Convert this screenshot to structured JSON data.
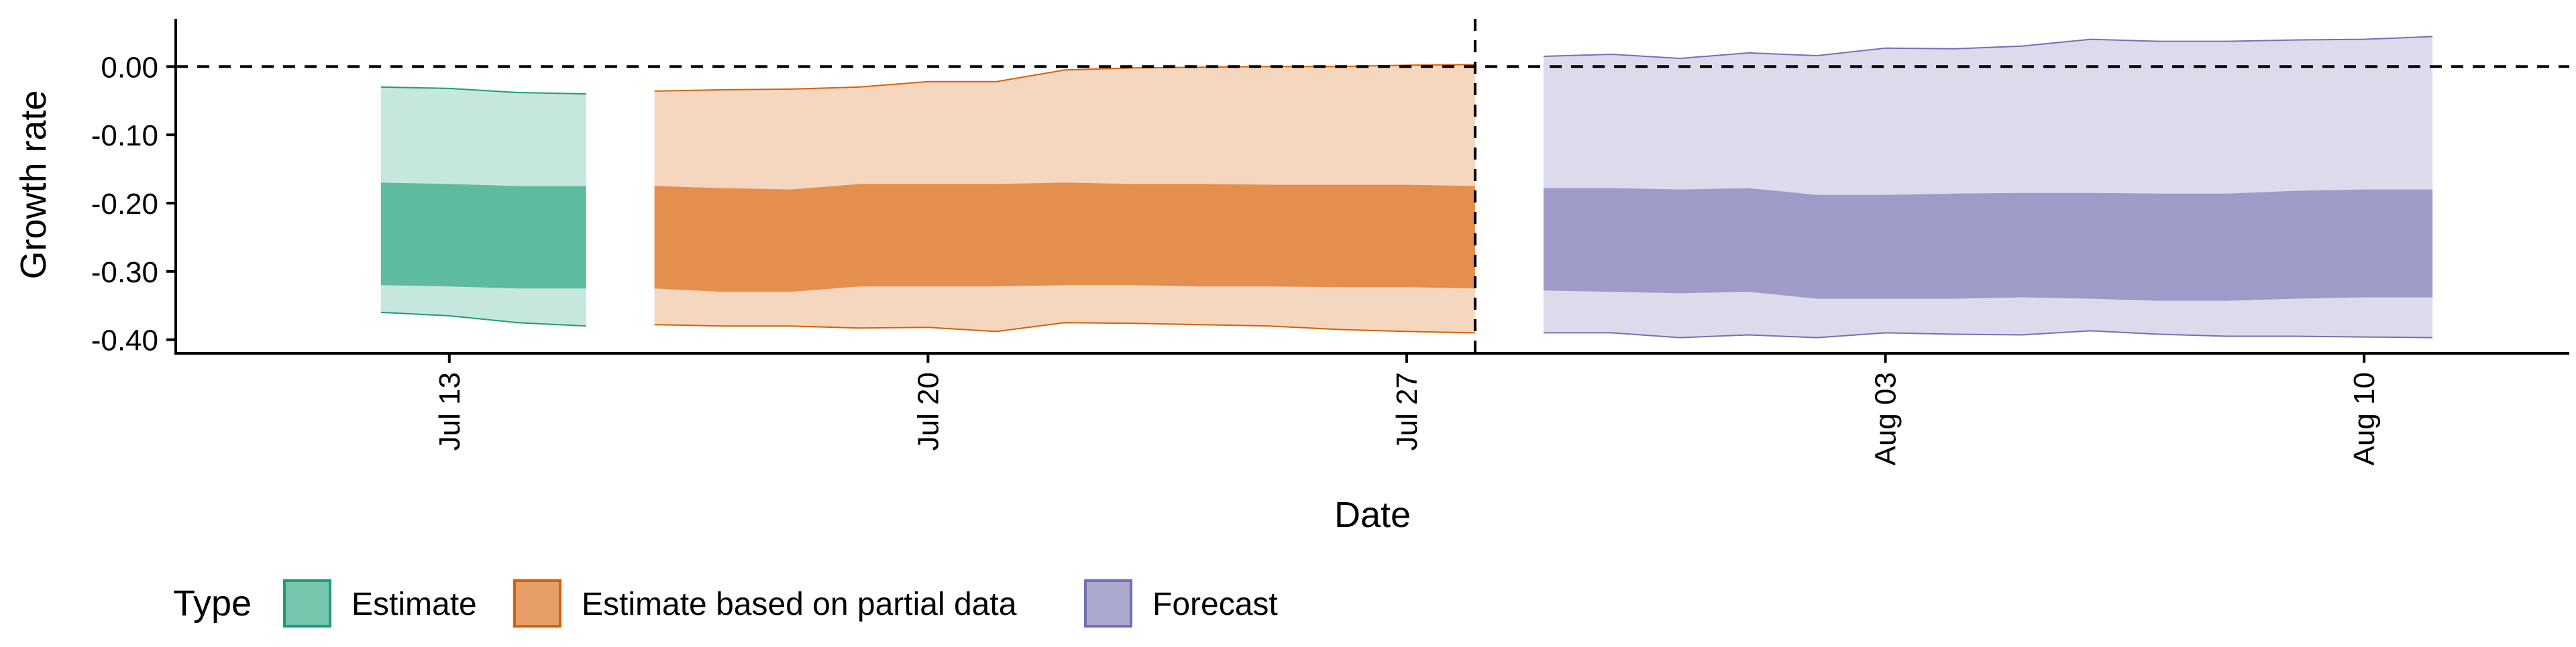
{
  "chart_data": {
    "type": "area",
    "xlabel": "Date",
    "ylabel": "Growth rate",
    "x_axis": {
      "type": "date",
      "range": [
        "2020-07-09",
        "2020-08-13"
      ],
      "ticks": [
        {
          "date": "2020-07-13",
          "label": "Jul 13"
        },
        {
          "date": "2020-07-20",
          "label": "Jul 20"
        },
        {
          "date": "2020-07-27",
          "label": "Jul 27"
        },
        {
          "date": "2020-08-03",
          "label": "Aug 03"
        },
        {
          "date": "2020-08-10",
          "label": "Aug 10"
        }
      ]
    },
    "y_axis": {
      "range": [
        -0.42,
        0.07
      ],
      "ticks": [
        {
          "value": 0.0,
          "label": "0.00"
        },
        {
          "value": -0.1,
          "label": "-0.10"
        },
        {
          "value": -0.2,
          "label": "-0.20"
        },
        {
          "value": -0.3,
          "label": "-0.30"
        },
        {
          "value": -0.4,
          "label": "-0.40"
        }
      ]
    },
    "reference_lines": {
      "horizontal_y": 0.0,
      "vertical_date": "2020-07-28"
    },
    "grid": false,
    "legend": {
      "title": "Type",
      "position": "bottom-left",
      "entries": [
        "Estimate",
        "Estimate based on partial data",
        "Forecast"
      ]
    },
    "series": [
      {
        "name": "Estimate",
        "color_fill": "#1b9e77",
        "color_line": "#1b9e77",
        "points": [
          {
            "date": "2020-07-12",
            "lower90": -0.36,
            "lower50": -0.32,
            "upper50": -0.17,
            "upper90": -0.03
          },
          {
            "date": "2020-07-13",
            "lower90": -0.365,
            "lower50": -0.322,
            "upper50": -0.172,
            "upper90": -0.032
          },
          {
            "date": "2020-07-14",
            "lower90": -0.375,
            "lower50": -0.325,
            "upper50": -0.175,
            "upper90": -0.038
          },
          {
            "date": "2020-07-15",
            "lower90": -0.38,
            "lower50": -0.325,
            "upper50": -0.175,
            "upper90": -0.04
          }
        ]
      },
      {
        "name": "Estimate based on partial data",
        "color_fill": "#d95f02",
        "color_line": "#d95f02",
        "points": [
          {
            "date": "2020-07-16",
            "lower90": -0.378,
            "lower50": -0.325,
            "upper50": -0.175,
            "upper90": -0.036
          },
          {
            "date": "2020-07-17",
            "lower90": -0.38,
            "lower50": -0.33,
            "upper50": -0.178,
            "upper90": -0.034
          },
          {
            "date": "2020-07-18",
            "lower90": -0.38,
            "lower50": -0.33,
            "upper50": -0.18,
            "upper90": -0.033
          },
          {
            "date": "2020-07-19",
            "lower90": -0.383,
            "lower50": -0.322,
            "upper50": -0.172,
            "upper90": -0.03
          },
          {
            "date": "2020-07-20",
            "lower90": -0.382,
            "lower50": -0.322,
            "upper50": -0.172,
            "upper90": -0.022
          },
          {
            "date": "2020-07-21",
            "lower90": -0.388,
            "lower50": -0.322,
            "upper50": -0.172,
            "upper90": -0.022
          },
          {
            "date": "2020-07-22",
            "lower90": -0.375,
            "lower50": -0.32,
            "upper50": -0.17,
            "upper90": -0.005
          },
          {
            "date": "2020-07-23",
            "lower90": -0.376,
            "lower50": -0.32,
            "upper50": -0.172,
            "upper90": -0.002
          },
          {
            "date": "2020-07-24",
            "lower90": -0.378,
            "lower50": -0.322,
            "upper50": -0.172,
            "upper90": -0.001
          },
          {
            "date": "2020-07-25",
            "lower90": -0.38,
            "lower50": -0.322,
            "upper50": -0.173,
            "upper90": 0.0
          },
          {
            "date": "2020-07-26",
            "lower90": -0.385,
            "lower50": -0.323,
            "upper50": -0.173,
            "upper90": 0.0
          },
          {
            "date": "2020-07-27",
            "lower90": -0.388,
            "lower50": -0.323,
            "upper50": -0.173,
            "upper90": 0.002
          },
          {
            "date": "2020-07-28",
            "lower90": -0.39,
            "lower50": -0.325,
            "upper50": -0.175,
            "upper90": 0.003
          }
        ]
      },
      {
        "name": "Forecast",
        "color_fill": "#7570b3",
        "color_line": "#7570b3",
        "points": [
          {
            "date": "2020-07-29",
            "lower90": -0.39,
            "lower50": -0.328,
            "upper50": -0.178,
            "upper90": 0.015
          },
          {
            "date": "2020-07-30",
            "lower90": -0.39,
            "lower50": -0.33,
            "upper50": -0.178,
            "upper90": 0.018
          },
          {
            "date": "2020-07-31",
            "lower90": -0.397,
            "lower50": -0.332,
            "upper50": -0.18,
            "upper90": 0.012
          },
          {
            "date": "2020-08-01",
            "lower90": -0.393,
            "lower50": -0.33,
            "upper50": -0.178,
            "upper90": 0.02
          },
          {
            "date": "2020-08-02",
            "lower90": -0.397,
            "lower50": -0.34,
            "upper50": -0.188,
            "upper90": 0.016
          },
          {
            "date": "2020-08-03",
            "lower90": -0.39,
            "lower50": -0.34,
            "upper50": -0.188,
            "upper90": 0.027
          },
          {
            "date": "2020-08-04",
            "lower90": -0.392,
            "lower50": -0.34,
            "upper50": -0.186,
            "upper90": 0.026
          },
          {
            "date": "2020-08-05",
            "lower90": -0.393,
            "lower50": -0.338,
            "upper50": -0.185,
            "upper90": 0.03
          },
          {
            "date": "2020-08-06",
            "lower90": -0.387,
            "lower50": -0.34,
            "upper50": -0.185,
            "upper90": 0.04
          },
          {
            "date": "2020-08-07",
            "lower90": -0.392,
            "lower50": -0.343,
            "upper50": -0.186,
            "upper90": 0.037
          },
          {
            "date": "2020-08-08",
            "lower90": -0.395,
            "lower50": -0.343,
            "upper50": -0.186,
            "upper90": 0.037
          },
          {
            "date": "2020-08-09",
            "lower90": -0.395,
            "lower50": -0.34,
            "upper50": -0.182,
            "upper90": 0.039
          },
          {
            "date": "2020-08-10",
            "lower90": -0.396,
            "lower50": -0.338,
            "upper50": -0.18,
            "upper90": 0.04
          },
          {
            "date": "2020-08-11",
            "lower90": -0.397,
            "lower50": -0.338,
            "upper50": -0.18,
            "upper90": 0.044
          }
        ]
      }
    ]
  }
}
